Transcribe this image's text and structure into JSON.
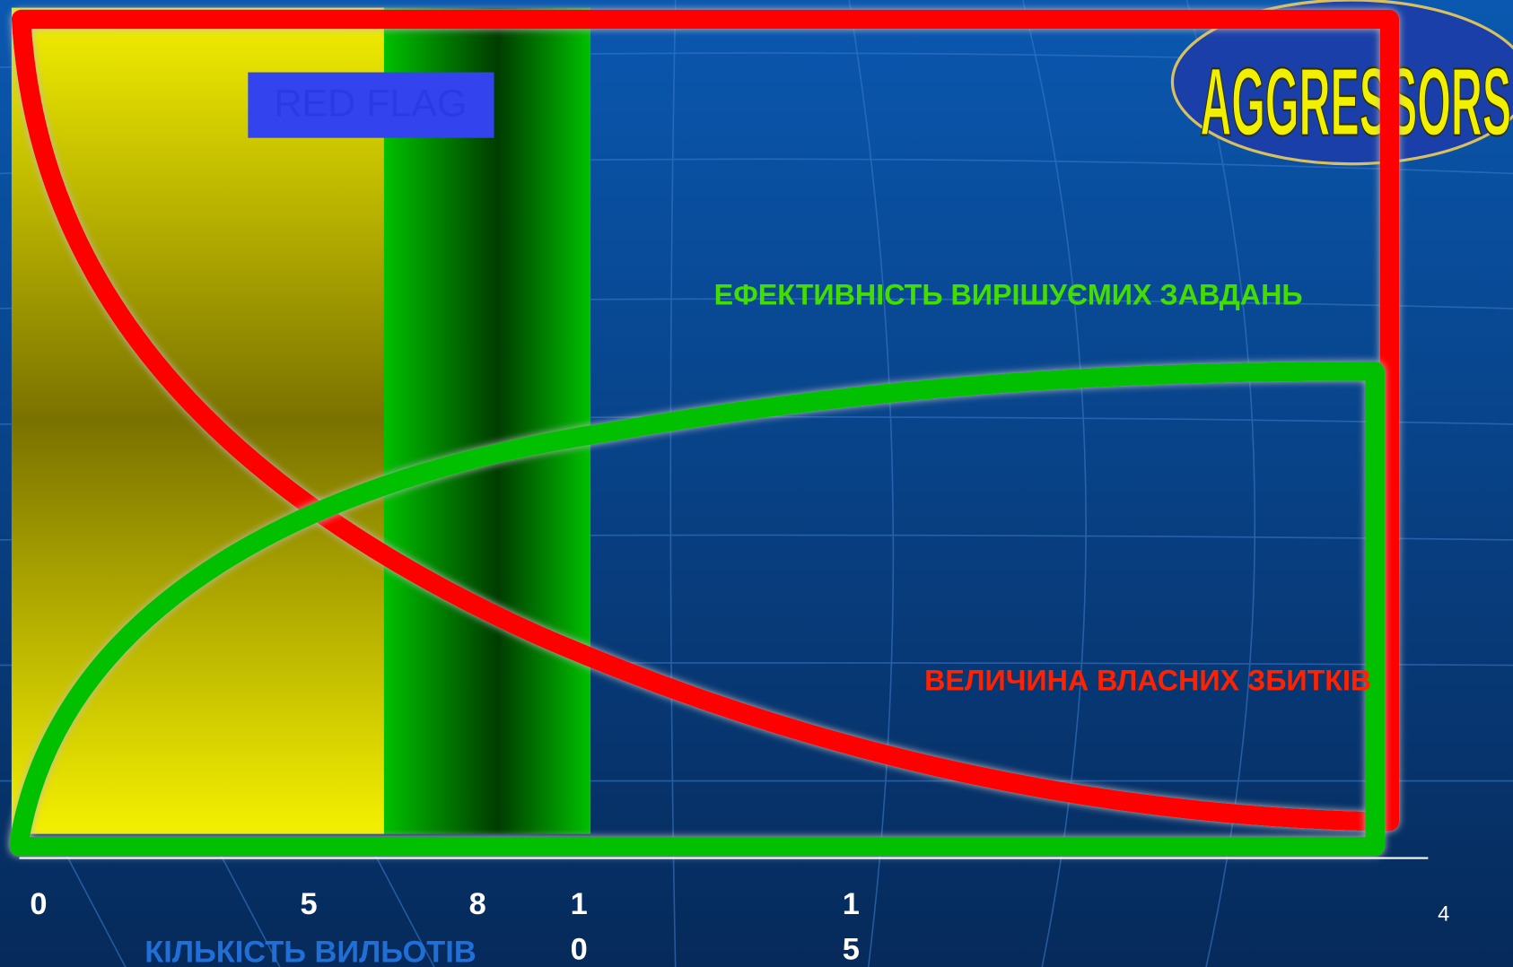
{
  "logo": {
    "text": "AGGRESSORS"
  },
  "badge": {
    "text": "RED FLAG"
  },
  "curves": {
    "efficiency_label": "ЕФЕКТИВНІСТЬ ВИРІШУЄМИХ ЗАВДАНЬ",
    "losses_label": "ВЕЛИЧИНА ВЛАСНИХ ЗБИТКІВ"
  },
  "x_axis": {
    "ticks": [
      "0",
      "5",
      "8",
      "10",
      "15"
    ],
    "label": "КІЛЬКІСТЬ  ВИЛЬОТІВ"
  },
  "page_number": "4"
}
